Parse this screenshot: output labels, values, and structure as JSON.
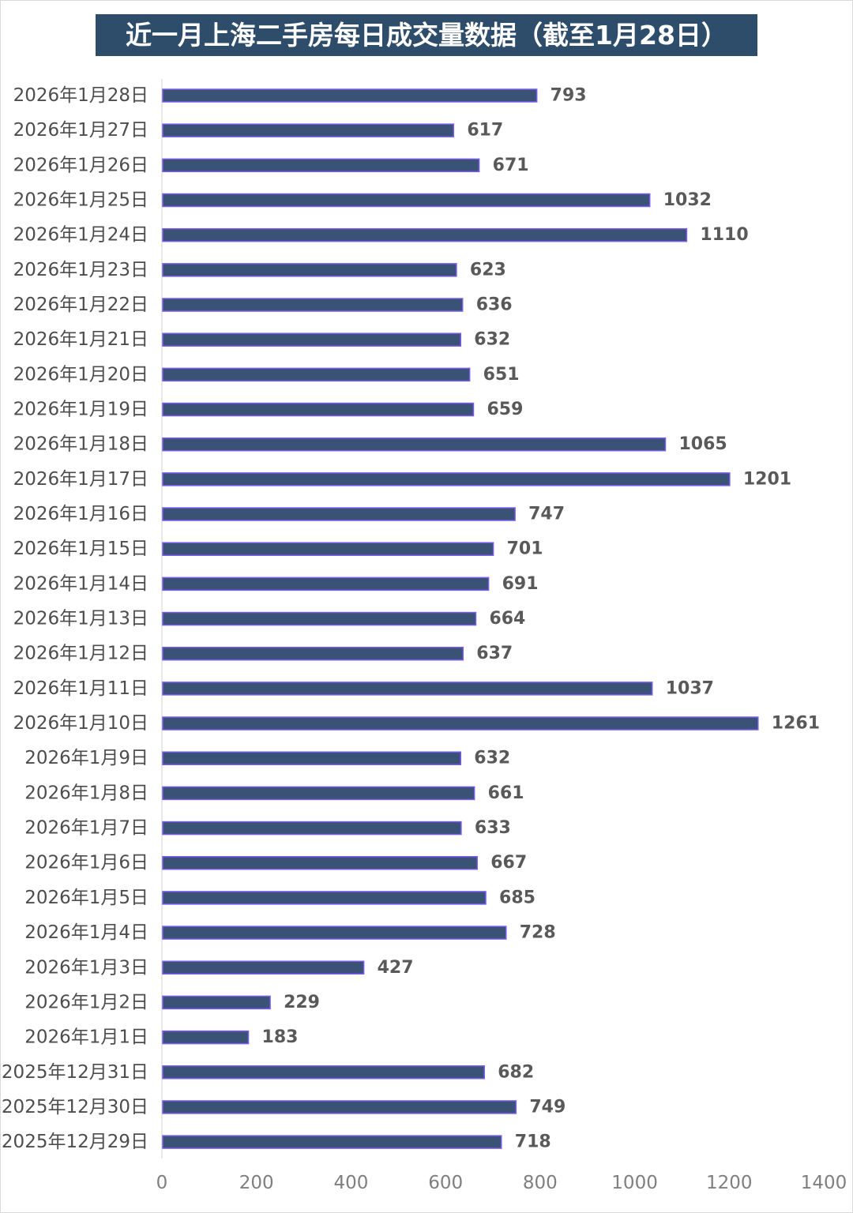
{
  "chart_data": {
    "type": "bar",
    "orientation": "horizontal",
    "title": "近一月上海二手房每日成交量数据（截至1月28日）",
    "categories": [
      "2026年1月28日",
      "2026年1月27日",
      "2026年1月26日",
      "2026年1月25日",
      "2026年1月24日",
      "2026年1月23日",
      "2026年1月22日",
      "2026年1月21日",
      "2026年1月20日",
      "2026年1月19日",
      "2026年1月18日",
      "2026年1月17日",
      "2026年1月16日",
      "2026年1月15日",
      "2026年1月14日",
      "2026年1月13日",
      "2026年1月12日",
      "2026年1月11日",
      "2026年1月10日",
      "2026年1月9日",
      "2026年1月8日",
      "2026年1月7日",
      "2026年1月6日",
      "2026年1月5日",
      "2026年1月4日",
      "2026年1月3日",
      "2026年1月2日",
      "2026年1月1日",
      "2025年12月31日",
      "2025年12月30日",
      "2025年12月29日"
    ],
    "values": [
      793,
      617,
      671,
      1032,
      1110,
      623,
      636,
      632,
      651,
      659,
      1065,
      1201,
      747,
      701,
      691,
      664,
      637,
      1037,
      1261,
      632,
      661,
      633,
      667,
      685,
      728,
      427,
      229,
      183,
      682,
      749,
      718
    ],
    "xlim": [
      0,
      1400
    ],
    "xticks": [
      0,
      200,
      400,
      600,
      800,
      1000,
      1200,
      1400
    ],
    "xlabel": "",
    "ylabel": "",
    "grid": false,
    "legend": "none",
    "colors": {
      "bar_fill": "#3a5276",
      "bar_outline": "#7a5cf0",
      "title_bg": "#2e4d6b"
    }
  }
}
